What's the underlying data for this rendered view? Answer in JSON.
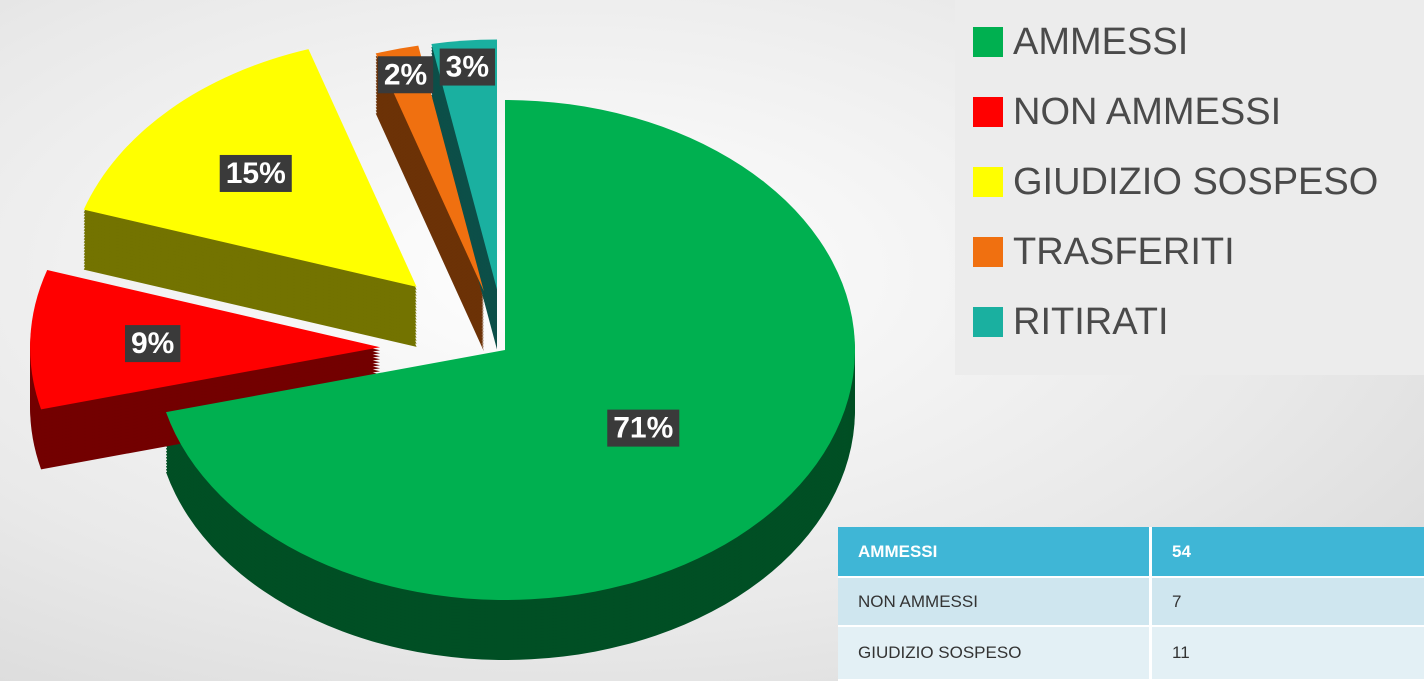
{
  "chart_data": {
    "type": "pie",
    "categories": [
      "AMMESSI",
      "NON AMMESSI",
      "GIUDIZIO SOSPESO",
      "TRASFERITI",
      "RITIRATI"
    ],
    "values": [
      71,
      9,
      15,
      2,
      3
    ],
    "value_labels": [
      "71%",
      "9%",
      "15%",
      "2%",
      "3%"
    ],
    "colors": [
      "#00b050",
      "#ff0000",
      "#ffff00",
      "#f07010",
      "#1ab0a0"
    ],
    "legend": "right"
  },
  "table": {
    "rows": [
      [
        "AMMESSI",
        "54"
      ],
      [
        "NON AMMESSI",
        "7"
      ],
      [
        "GIUDIZIO SOSPESO",
        "11"
      ]
    ]
  }
}
